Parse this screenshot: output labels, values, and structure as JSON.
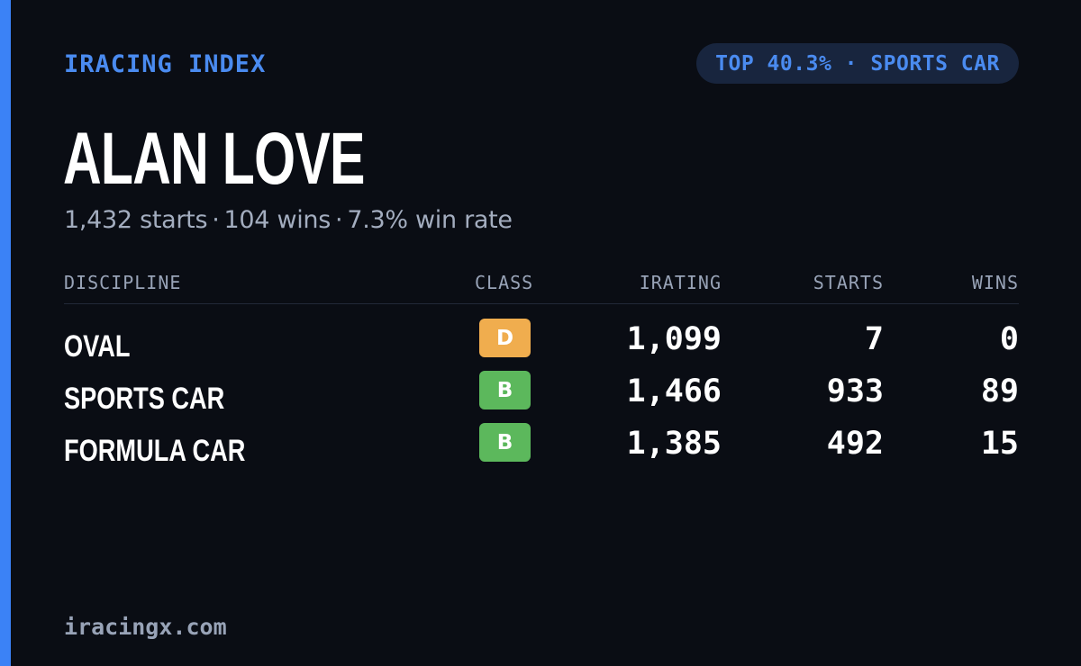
{
  "brand": "IRACING INDEX",
  "badge": "TOP 40.3% · SPORTS CAR",
  "driver": {
    "name": "ALAN LOVE",
    "starts_text": "1,432 starts",
    "wins_text": "104 wins",
    "winrate_text": "7.3% win rate",
    "separator": "·"
  },
  "table": {
    "headers": {
      "discipline": "DISCIPLINE",
      "class": "CLASS",
      "irating": "IRATING",
      "starts": "STARTS",
      "wins": "WINS"
    },
    "rows": [
      {
        "discipline": "OVAL",
        "class": "D",
        "class_color": "#f0ad4e",
        "irating": "1,099",
        "starts": "7",
        "wins": "0"
      },
      {
        "discipline": "SPORTS CAR",
        "class": "B",
        "class_color": "#5cb85c",
        "irating": "1,466",
        "starts": "933",
        "wins": "89"
      },
      {
        "discipline": "FORMULA CAR",
        "class": "B",
        "class_color": "#5cb85c",
        "irating": "1,385",
        "starts": "492",
        "wins": "15"
      }
    ]
  },
  "footer": "iracingx.com",
  "colors": {
    "accent": "#3b82f6",
    "background": "#0a0d14"
  }
}
